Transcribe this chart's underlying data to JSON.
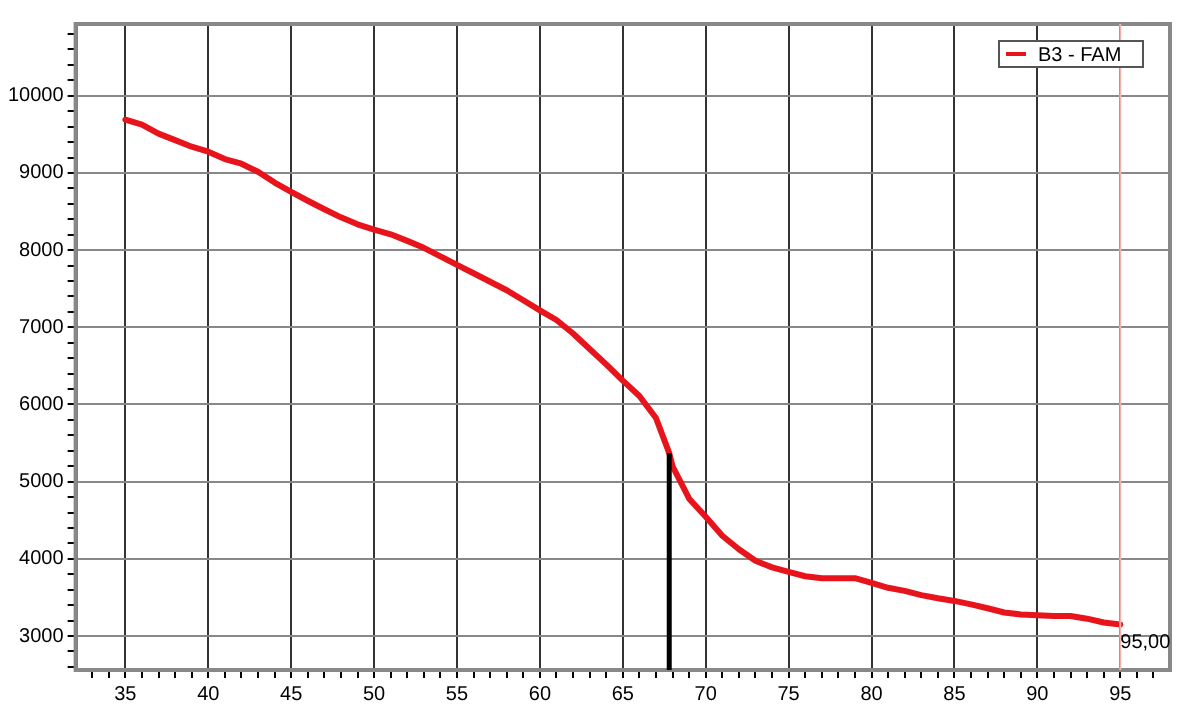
{
  "chart_data": {
    "type": "line",
    "legend": "top right",
    "grid": true,
    "marker": "none",
    "line_style": "solid",
    "xlim": [
      32,
      98
    ],
    "ylim": [
      2560,
      10930
    ],
    "xticks": [
      {
        "value": 33,
        "label": null
      },
      {
        "value": 34,
        "label": null
      },
      35,
      {
        "value": 36,
        "label": null
      },
      {
        "value": 37,
        "label": null
      },
      {
        "value": 38,
        "label": null
      },
      {
        "value": 39,
        "label": null
      },
      40,
      {
        "value": 41,
        "label": null
      },
      {
        "value": 42,
        "label": null
      },
      {
        "value": 43,
        "label": null
      },
      {
        "value": 44,
        "label": null
      },
      45,
      {
        "value": 46,
        "label": null
      },
      {
        "value": 47,
        "label": null
      },
      {
        "value": 48,
        "label": null
      },
      {
        "value": 49,
        "label": null
      },
      50,
      {
        "value": 51,
        "label": null
      },
      {
        "value": 52,
        "label": null
      },
      {
        "value": 53,
        "label": null
      },
      {
        "value": 54,
        "label": null
      },
      55,
      {
        "value": 56,
        "label": null
      },
      {
        "value": 57,
        "label": null
      },
      {
        "value": 58,
        "label": null
      },
      {
        "value": 59,
        "label": null
      },
      60,
      {
        "value": 61,
        "label": null
      },
      {
        "value": 62,
        "label": null
      },
      {
        "value": 63,
        "label": null
      },
      {
        "value": 64,
        "label": null
      },
      65,
      {
        "value": 66,
        "label": null
      },
      {
        "value": 67,
        "label": null
      },
      {
        "value": 68,
        "label": null
      },
      {
        "value": 69,
        "label": null
      },
      70,
      {
        "value": 71,
        "label": null
      },
      {
        "value": 72,
        "label": null
      },
      {
        "value": 73,
        "label": null
      },
      {
        "value": 74,
        "label": null
      },
      75,
      {
        "value": 76,
        "label": null
      },
      {
        "value": 77,
        "label": null
      },
      {
        "value": 78,
        "label": null
      },
      {
        "value": 79,
        "label": null
      },
      80,
      {
        "value": 81,
        "label": null
      },
      {
        "value": 82,
        "label": null
      },
      {
        "value": 83,
        "label": null
      },
      {
        "value": 84,
        "label": null
      },
      85,
      {
        "value": 86,
        "label": null
      },
      {
        "value": 87,
        "label": null
      },
      {
        "value": 88,
        "label": null
      },
      {
        "value": 89,
        "label": null
      },
      90,
      {
        "value": 91,
        "label": null
      },
      {
        "value": 92,
        "label": null
      },
      {
        "value": 93,
        "label": null
      },
      {
        "value": 94,
        "label": null
      },
      95,
      {
        "value": 96,
        "label": null
      },
      {
        "value": 97,
        "label": null
      }
    ],
    "yticks": [
      {
        "value": 2600,
        "label": null
      },
      {
        "value": 2800,
        "label": null
      },
      3000,
      {
        "value": 3200,
        "label": null
      },
      {
        "value": 3400,
        "label": null
      },
      {
        "value": 3600,
        "label": null
      },
      {
        "value": 3800,
        "label": null
      },
      4000,
      {
        "value": 4200,
        "label": null
      },
      {
        "value": 4400,
        "label": null
      },
      {
        "value": 4600,
        "label": null
      },
      {
        "value": 4800,
        "label": null
      },
      5000,
      {
        "value": 5200,
        "label": null
      },
      {
        "value": 5400,
        "label": null
      },
      {
        "value": 5600,
        "label": null
      },
      {
        "value": 5800,
        "label": null
      },
      6000,
      {
        "value": 6200,
        "label": null
      },
      {
        "value": 6400,
        "label": null
      },
      {
        "value": 6600,
        "label": null
      },
      {
        "value": 6800,
        "label": null
      },
      7000,
      {
        "value": 7200,
        "label": null
      },
      {
        "value": 7400,
        "label": null
      },
      {
        "value": 7600,
        "label": null
      },
      {
        "value": 7800,
        "label": null
      },
      8000,
      {
        "value": 8200,
        "label": null
      },
      {
        "value": 8400,
        "label": null
      },
      {
        "value": 8600,
        "label": null
      },
      {
        "value": 8800,
        "label": null
      },
      9000,
      {
        "value": 9200,
        "label": null
      },
      {
        "value": 9400,
        "label": null
      },
      {
        "value": 9600,
        "label": null
      },
      {
        "value": 9800,
        "label": null
      },
      10000,
      {
        "value": 10200,
        "label": null
      },
      {
        "value": 10400,
        "label": null
      },
      {
        "value": 10600,
        "label": null
      },
      {
        "value": 10800,
        "label": null
      }
    ],
    "ref_lines": [
      {
        "axis": "x",
        "value": 67.8,
        "color": "#000000"
      },
      {
        "axis": "x",
        "value": 95,
        "label": "95,00",
        "color": "#f2b4aa"
      }
    ],
    "series": [
      {
        "name": "B3 - FAM",
        "color": "#e8141c",
        "x": [
          35,
          36,
          37,
          38,
          39,
          40,
          41,
          42,
          43,
          44,
          45,
          46,
          47,
          48,
          49,
          50,
          51,
          52,
          53,
          54,
          55,
          56,
          57,
          58,
          59,
          60,
          61,
          62,
          63,
          64,
          65,
          66,
          67,
          67.8,
          68,
          69,
          70,
          71,
          72,
          73,
          74,
          75,
          76,
          77,
          78,
          79,
          80,
          81,
          82,
          83,
          84,
          85,
          86,
          87,
          88,
          89,
          90,
          91,
          92,
          93,
          94,
          95
        ],
        "values": [
          9690,
          9625,
          9510,
          9425,
          9340,
          9275,
          9180,
          9120,
          9015,
          8875,
          8755,
          8640,
          8530,
          8425,
          8335,
          8265,
          8205,
          8120,
          8030,
          7920,
          7810,
          7700,
          7590,
          7480,
          7350,
          7220,
          7095,
          6920,
          6720,
          6520,
          6310,
          6110,
          5825,
          5370,
          5200,
          4780,
          4545,
          4300,
          4125,
          3975,
          3890,
          3830,
          3775,
          3750,
          3750,
          3750,
          3690,
          3625,
          3585,
          3530,
          3490,
          3455,
          3410,
          3360,
          3305,
          3280,
          3270,
          3260,
          3260,
          3225,
          3175,
          3150
        ]
      }
    ]
  }
}
